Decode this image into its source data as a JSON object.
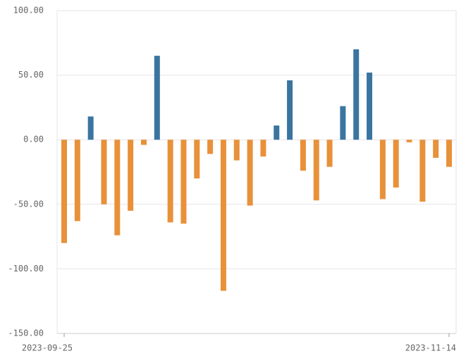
{
  "chart_data": {
    "type": "bar",
    "categories": [
      "2023-09-25",
      null,
      null,
      null,
      null,
      null,
      null,
      null,
      null,
      null,
      null,
      null,
      null,
      null,
      null,
      null,
      null,
      null,
      null,
      null,
      null,
      null,
      null,
      null,
      null,
      null,
      null,
      null,
      null,
      "2023-11-14"
    ],
    "values": [
      -80,
      -63,
      18,
      -50,
      -74,
      -55,
      -4,
      65,
      -64,
      -65,
      -30,
      -11,
      -117,
      -16,
      -51,
      -13,
      11,
      46,
      -24,
      -47,
      -21,
      26,
      70,
      52,
      -46,
      -37,
      -2,
      -48,
      -14,
      -21
    ],
    "colors": {
      "positive": "#3a75a0",
      "negative": "#e8913a"
    },
    "ylim": [
      -150,
      100
    ],
    "yticks": [
      {
        "value": -150,
        "label": "-150.00"
      },
      {
        "value": -100,
        "label": "-100.00"
      },
      {
        "value": -50,
        "label": "-50.00"
      },
      {
        "value": 0,
        "label": "0.00"
      },
      {
        "value": 50,
        "label": "50.00"
      },
      {
        "value": 100,
        "label": "100.00"
      }
    ],
    "grid": true
  }
}
